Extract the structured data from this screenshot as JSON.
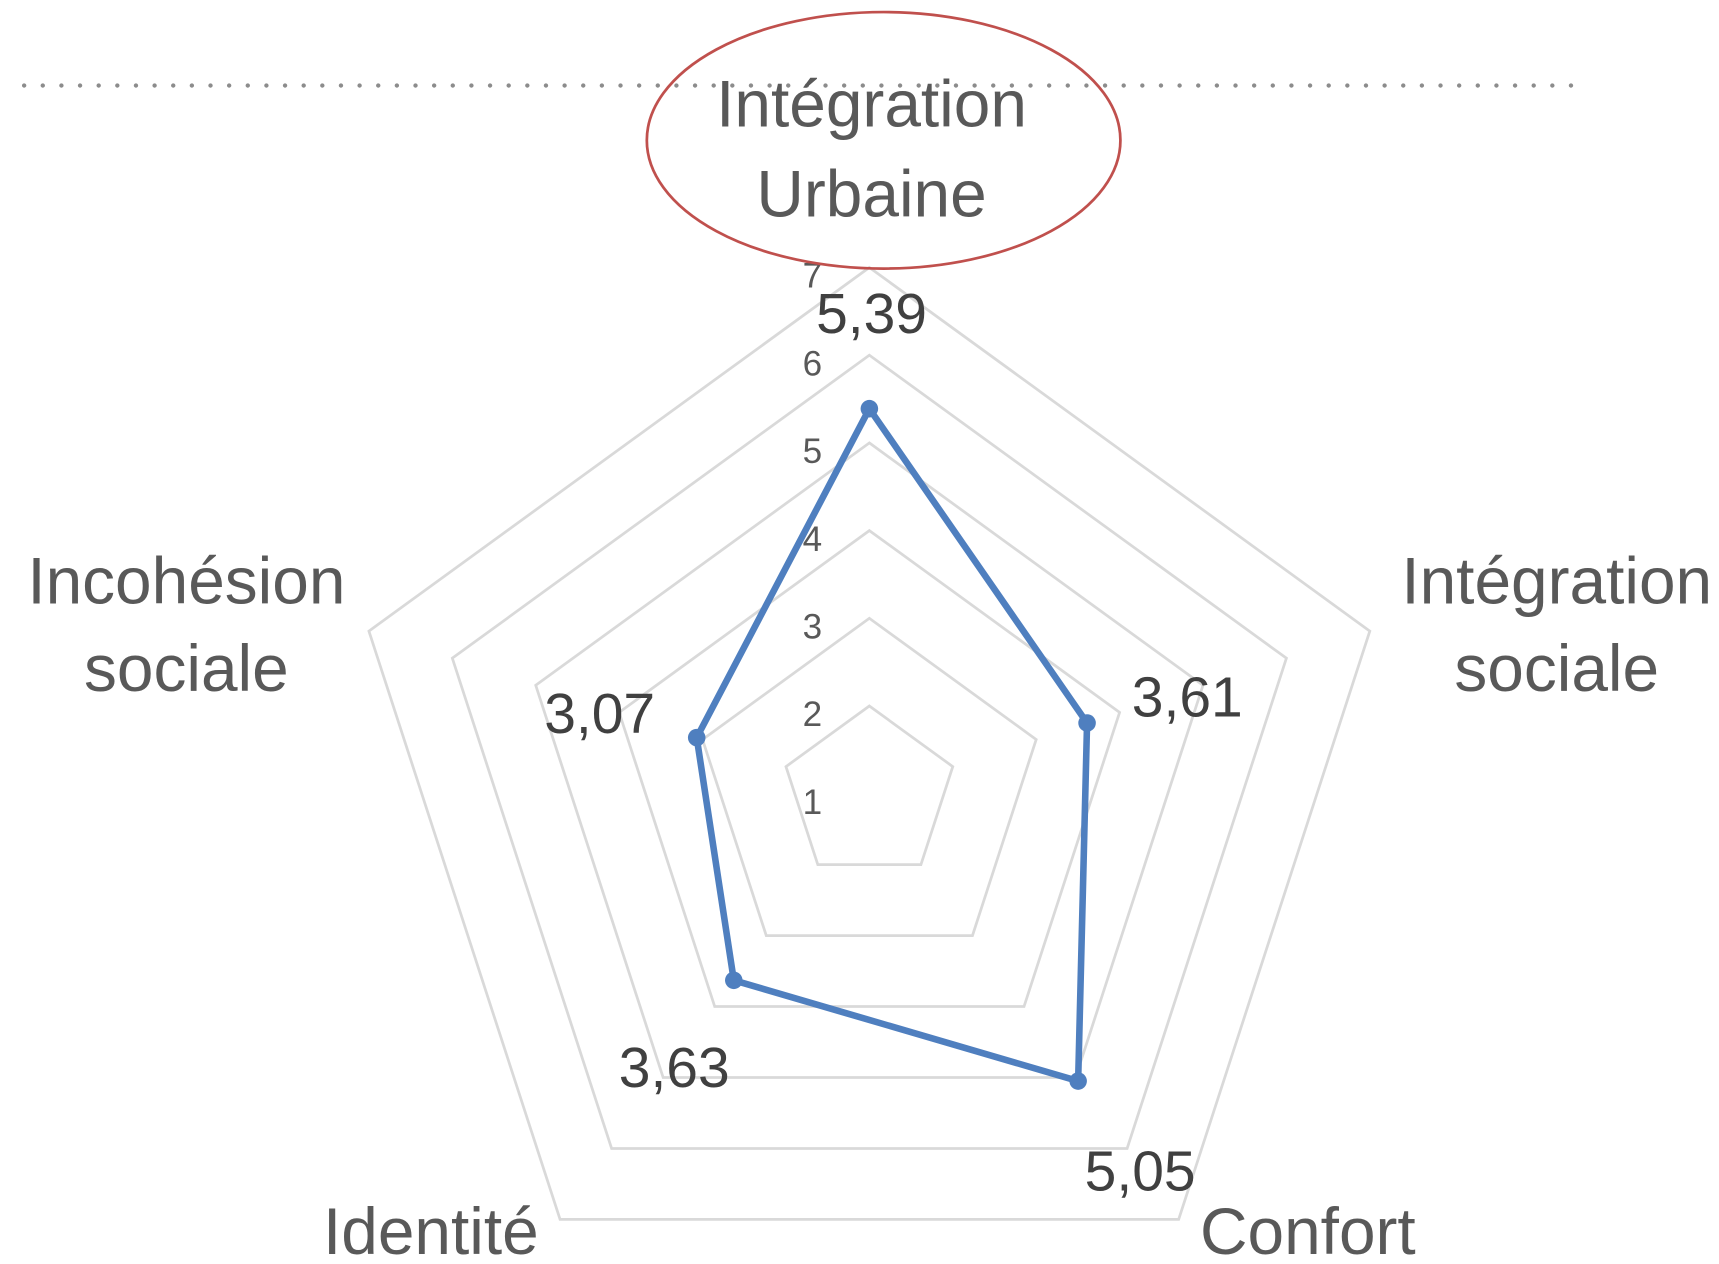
{
  "chart_data": {
    "type": "radar",
    "categories": [
      "Intégration Urbaine",
      "Intégration sociale",
      "Confort",
      "Identité",
      "Incohésion sociale"
    ],
    "series": [
      {
        "name": null,
        "color": "#4f7fbf",
        "values": [
          5.39,
          3.61,
          5.05,
          3.63,
          3.07
        ],
        "value_labels": [
          "5,39",
          "3,61",
          "5,05",
          "3,63",
          "3,07"
        ]
      }
    ],
    "ylim": [
      1,
      7
    ],
    "yticks": [
      1,
      2,
      3,
      4,
      5,
      6,
      7
    ],
    "grid": true,
    "grid_color": "#d9d9d9"
  }
}
